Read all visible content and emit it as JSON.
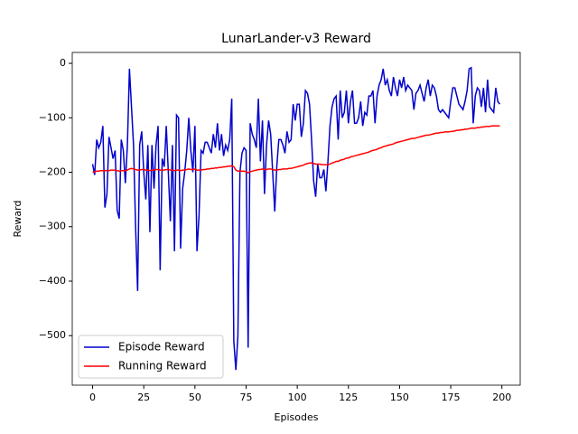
{
  "chart_data": {
    "type": "line",
    "title": "LunarLander-v3 Reward",
    "x_label": "Episodes",
    "y_label": "Reward",
    "x": [
      0,
      1,
      2,
      3,
      4,
      5,
      6,
      7,
      8,
      9,
      10,
      11,
      12,
      13,
      14,
      15,
      16,
      17,
      18,
      19,
      20,
      21,
      22,
      23,
      24,
      25,
      26,
      27,
      28,
      29,
      30,
      31,
      32,
      33,
      34,
      35,
      36,
      37,
      38,
      39,
      40,
      41,
      42,
      43,
      44,
      45,
      46,
      47,
      48,
      49,
      50,
      51,
      52,
      53,
      54,
      55,
      56,
      57,
      58,
      59,
      60,
      61,
      62,
      63,
      64,
      65,
      66,
      67,
      68,
      69,
      70,
      71,
      72,
      73,
      74,
      75,
      76,
      77,
      78,
      79,
      80,
      81,
      82,
      83,
      84,
      85,
      86,
      87,
      88,
      89,
      90,
      91,
      92,
      93,
      94,
      95,
      96,
      97,
      98,
      99,
      100,
      101,
      102,
      103,
      104,
      105,
      106,
      107,
      108,
      109,
      110,
      111,
      112,
      113,
      114,
      115,
      116,
      117,
      118,
      119,
      120,
      121,
      122,
      123,
      124,
      125,
      126,
      127,
      128,
      129,
      130,
      131,
      132,
      133,
      134,
      135,
      136,
      137,
      138,
      139,
      140,
      141,
      142,
      143,
      144,
      145,
      146,
      147,
      148,
      149,
      150,
      151,
      152,
      153,
      154,
      155,
      156,
      157,
      158,
      159,
      160,
      161,
      162,
      163,
      164,
      165,
      166,
      167,
      168,
      169,
      170,
      171,
      172,
      173,
      174,
      175,
      176,
      177,
      178,
      179,
      180,
      181,
      182,
      183,
      184,
      185,
      186,
      187,
      188,
      189,
      190,
      191,
      192,
      193,
      194,
      195,
      196,
      197,
      198,
      199
    ],
    "series": [
      {
        "name": "Episode Reward",
        "color": "#0000cc",
        "values": [
          -185,
          -205,
          -140,
          -155,
          -145,
          -115,
          -265,
          -240,
          -135,
          -155,
          -175,
          -160,
          -270,
          -285,
          -140,
          -160,
          -220,
          -150,
          -10,
          -80,
          -150,
          -300,
          -418,
          -150,
          -125,
          -200,
          -250,
          -150,
          -310,
          -150,
          -230,
          -150,
          -115,
          -380,
          -175,
          -190,
          -115,
          -200,
          -290,
          -150,
          -345,
          -95,
          -100,
          -340,
          -230,
          -200,
          -160,
          -100,
          -160,
          -200,
          -115,
          -345,
          -280,
          -160,
          -165,
          -145,
          -145,
          -155,
          -165,
          -130,
          -155,
          -110,
          -160,
          -130,
          -170,
          -150,
          -160,
          -140,
          -65,
          -510,
          -563,
          -500,
          -200,
          -165,
          -155,
          -160,
          -522,
          -110,
          -130,
          -140,
          -155,
          -65,
          -180,
          -105,
          -240,
          -150,
          -105,
          -130,
          -200,
          -272,
          -190,
          -140,
          -140,
          -150,
          -165,
          -125,
          -145,
          -140,
          -75,
          -105,
          -75,
          -75,
          -135,
          -110,
          -50,
          -55,
          -75,
          -140,
          -215,
          -245,
          -185,
          -210,
          -210,
          -195,
          -235,
          -180,
          -115,
          -80,
          -65,
          -60,
          -140,
          -50,
          -100,
          -90,
          -50,
          -110,
          -70,
          -50,
          -110,
          -110,
          -100,
          -70,
          -115,
          -90,
          -95,
          -60,
          -60,
          -50,
          -110,
          -60,
          -40,
          -30,
          -10,
          -40,
          -30,
          -50,
          -60,
          -25,
          -45,
          -60,
          -30,
          -45,
          -25,
          -50,
          -40,
          -45,
          -50,
          -85,
          -55,
          -50,
          -40,
          -55,
          -70,
          -45,
          -30,
          -60,
          -40,
          -45,
          -60,
          -85,
          -90,
          -85,
          -90,
          -95,
          -100,
          -70,
          -45,
          -45,
          -60,
          -75,
          -80,
          -85,
          -70,
          -50,
          -10,
          -8,
          -110,
          -60,
          -45,
          -50,
          -80,
          -45,
          -90,
          -30,
          -80,
          -85,
          -90,
          -45,
          -70,
          -75
        ]
      },
      {
        "name": "Running Reward",
        "color": "#ff0000",
        "values": [
          -200,
          -199,
          -198,
          -198,
          -197,
          -197,
          -197,
          -197,
          -197,
          -196,
          -196,
          -196,
          -197,
          -198,
          -197,
          -197,
          -197,
          -196,
          -194,
          -193,
          -194,
          -195,
          -196,
          -196,
          -195,
          -195,
          -196,
          -196,
          -197,
          -196,
          -196,
          -195,
          -195,
          -196,
          -196,
          -196,
          -195,
          -195,
          -196,
          -196,
          -197,
          -196,
          -196,
          -197,
          -196,
          -196,
          -195,
          -194,
          -195,
          -195,
          -194,
          -196,
          -196,
          -196,
          -195,
          -195,
          -194,
          -194,
          -193,
          -193,
          -192,
          -192,
          -191,
          -191,
          -190,
          -190,
          -189,
          -189,
          -188,
          -190,
          -196,
          -198,
          -198,
          -198,
          -198,
          -199,
          -201,
          -199,
          -198,
          -197,
          -196,
          -195,
          -195,
          -194,
          -195,
          -195,
          -194,
          -194,
          -195,
          -196,
          -196,
          -195,
          -195,
          -194,
          -194,
          -194,
          -193,
          -193,
          -192,
          -191,
          -190,
          -189,
          -188,
          -187,
          -185,
          -184,
          -183,
          -183,
          -184,
          -185,
          -185,
          -185,
          -186,
          -186,
          -186,
          -186,
          -185,
          -183,
          -182,
          -180,
          -180,
          -178,
          -177,
          -176,
          -174,
          -174,
          -172,
          -171,
          -170,
          -169,
          -168,
          -167,
          -166,
          -165,
          -164,
          -163,
          -161,
          -160,
          -159,
          -158,
          -156,
          -155,
          -153,
          -152,
          -151,
          -150,
          -149,
          -148,
          -146,
          -145,
          -144,
          -143,
          -142,
          -141,
          -140,
          -139,
          -138,
          -138,
          -137,
          -136,
          -135,
          -134,
          -133,
          -132,
          -132,
          -131,
          -130,
          -129,
          -128,
          -128,
          -127,
          -127,
          -126,
          -126,
          -126,
          -125,
          -125,
          -124,
          -123,
          -123,
          -122,
          -122,
          -121,
          -121,
          -120,
          -119,
          -119,
          -119,
          -118,
          -118,
          -117,
          -117,
          -116,
          -116,
          -116,
          -115,
          -115,
          -115,
          -115,
          -115
        ]
      }
    ],
    "xlim": [
      -9.95,
      208.95
    ],
    "xticks": [
      0,
      25,
      50,
      75,
      100,
      125,
      150,
      175,
      200
    ],
    "ylim": [
      -591,
      20
    ],
    "yticks": [
      {
        "value": -500,
        "label": "−500"
      },
      {
        "value": -400,
        "label": "−400"
      },
      {
        "value": -300,
        "label": "−300"
      },
      {
        "value": -200,
        "label": "−200"
      },
      {
        "value": -100,
        "label": "−100"
      },
      0
    ],
    "legend": "lower left"
  }
}
